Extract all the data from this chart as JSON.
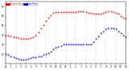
{
  "temp_color": "#dd0000",
  "dew_color": "#0000cc",
  "legend_temp_label": "Outdoor Temp",
  "legend_dew_label": "Dew Point",
  "background_color": "#ffffff",
  "grid_color": "#aaaaaa",
  "ylim": [
    10,
    75
  ],
  "xlim": [
    0,
    48
  ],
  "yticks": [
    20,
    30,
    40,
    50,
    60,
    70
  ],
  "xtick_positions": [
    0,
    2,
    4,
    6,
    8,
    10,
    12,
    14,
    16,
    18,
    20,
    22,
    24,
    26,
    28,
    30,
    32,
    34,
    36,
    38,
    40,
    42,
    44,
    46,
    48
  ],
  "xtick_labels": [
    "12",
    "1",
    "2",
    "3",
    "4",
    "5",
    "6",
    "7",
    "8",
    "9",
    "10",
    "11",
    "12",
    "1",
    "2",
    "3",
    "4",
    "5",
    "6",
    "7",
    "8",
    "9",
    "10",
    "11",
    "12"
  ],
  "temp_x": [
    0,
    1,
    2,
    3,
    4,
    5,
    6,
    7,
    8,
    9,
    10,
    11,
    12,
    13,
    14,
    15,
    16,
    17,
    18,
    19,
    20,
    21,
    22,
    23,
    24,
    25,
    26,
    27,
    28,
    29,
    30,
    31,
    32,
    33,
    34,
    35,
    36,
    37,
    38,
    39,
    40,
    41,
    42,
    43,
    44,
    45,
    46,
    47,
    48
  ],
  "temp_y": [
    40,
    40,
    39,
    38,
    38,
    37,
    36,
    36,
    36,
    36,
    37,
    38,
    40,
    43,
    47,
    51,
    55,
    58,
    61,
    63,
    64,
    64,
    64,
    64,
    64,
    64,
    64,
    64,
    64,
    65,
    65,
    65,
    64,
    63,
    63,
    62,
    62,
    62,
    62,
    63,
    64,
    65,
    65,
    64,
    63,
    62,
    60,
    58,
    57
  ],
  "dew_x": [
    0,
    1,
    2,
    3,
    4,
    5,
    6,
    7,
    8,
    9,
    10,
    11,
    12,
    13,
    14,
    15,
    16,
    17,
    18,
    19,
    20,
    21,
    22,
    23,
    24,
    25,
    26,
    27,
    28,
    29,
    30,
    31,
    32,
    33,
    34,
    35,
    36,
    37,
    38,
    39,
    40,
    41,
    42,
    43,
    44,
    45,
    46,
    47,
    48
  ],
  "dew_y": [
    20,
    19,
    18,
    17,
    16,
    15,
    14,
    14,
    14,
    15,
    16,
    17,
    17,
    18,
    18,
    19,
    20,
    21,
    23,
    25,
    27,
    28,
    29,
    30,
    30,
    30,
    30,
    30,
    30,
    30,
    30,
    30,
    30,
    30,
    30,
    33,
    36,
    39,
    42,
    44,
    46,
    47,
    47,
    47,
    46,
    44,
    42,
    40,
    38
  ]
}
